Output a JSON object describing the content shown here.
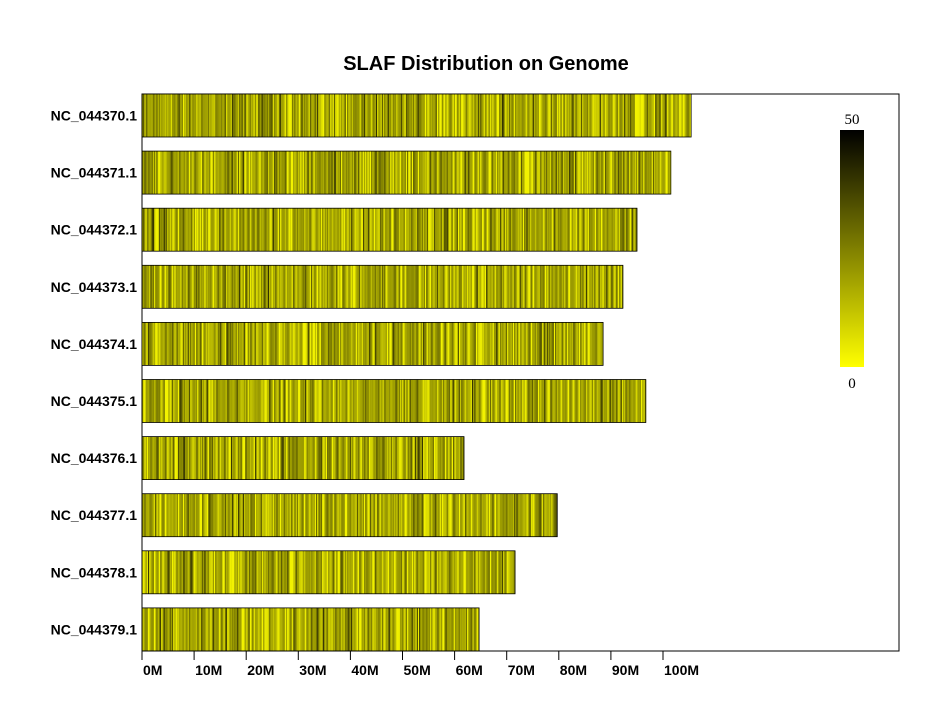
{
  "chart_data": {
    "type": "heatmap",
    "title": "SLAF Distribution on Genome",
    "xlabel": "",
    "ylabel": "",
    "x_unit": "Mb",
    "xlim": [
      0,
      145
    ],
    "x_ticks": [
      0,
      10,
      20,
      30,
      40,
      50,
      60,
      70,
      80,
      90,
      100
    ],
    "x_tick_labels": [
      "0M",
      "10M",
      "20M",
      "30M",
      "40M",
      "50M",
      "60M",
      "70M",
      "80M",
      "90M",
      "100M"
    ],
    "chromosomes": [
      {
        "name": "NC_044370.1",
        "length_mb": 105.4
      },
      {
        "name": "NC_044371.1",
        "length_mb": 101.5
      },
      {
        "name": "NC_044372.1",
        "length_mb": 95.0
      },
      {
        "name": "NC_044373.1",
        "length_mb": 92.3
      },
      {
        "name": "NC_044374.1",
        "length_mb": 88.5
      },
      {
        "name": "NC_044375.1",
        "length_mb": 96.7
      },
      {
        "name": "NC_044376.1",
        "length_mb": 61.8
      },
      {
        "name": "NC_044377.1",
        "length_mb": 79.7
      },
      {
        "name": "NC_044378.1",
        "length_mb": 71.6
      },
      {
        "name": "NC_044379.1",
        "length_mb": 64.7
      }
    ],
    "color_scale": {
      "min": 0,
      "max": 50,
      "min_label": "0",
      "max_label": "50",
      "low_color": "#ffff00",
      "high_color": "#000000"
    },
    "legend_position": "right",
    "grid": false
  }
}
